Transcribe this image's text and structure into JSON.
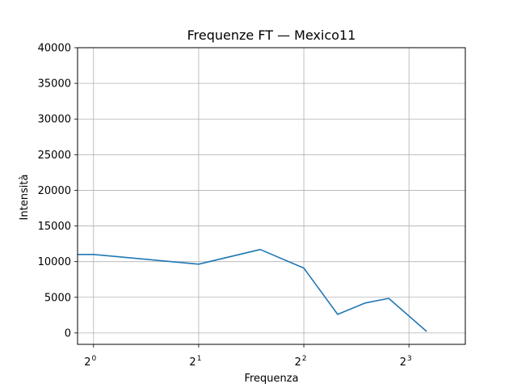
{
  "chart_data": {
    "type": "line",
    "title": "Frequenze FT — Mexico11",
    "xlabel": "Frequenza",
    "ylabel": "Intensità",
    "xscale": "log2",
    "xlim": [
      0.9,
      11.6
    ],
    "ylim": [
      -1600,
      40000
    ],
    "x_ticks": [
      {
        "value": 1,
        "base": "2",
        "exp": "0"
      },
      {
        "value": 2,
        "base": "2",
        "exp": "1"
      },
      {
        "value": 4,
        "base": "2",
        "exp": "2"
      },
      {
        "value": 8,
        "base": "2",
        "exp": "3"
      }
    ],
    "y_ticks": [
      0,
      5000,
      10000,
      15000,
      20000,
      25000,
      30000,
      35000,
      40000
    ],
    "y_tick_labels": [
      "0",
      "5000",
      "10000",
      "15000",
      "20000",
      "25000",
      "30000",
      "35000",
      "40000"
    ],
    "grid": true,
    "series": [
      {
        "color": "#1f77b4",
        "x": [
          0.9,
          1,
          2,
          3,
          4,
          5,
          6,
          7,
          9
        ],
        "y": [
          11000,
          11000,
          9650,
          11700,
          9100,
          2600,
          4200,
          4850,
          200
        ]
      }
    ]
  }
}
